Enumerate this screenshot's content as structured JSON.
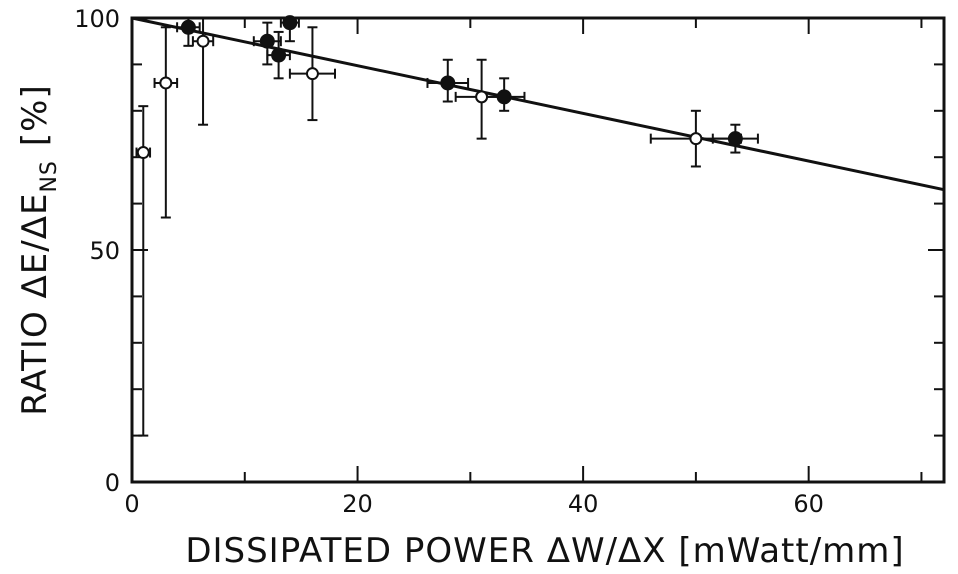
{
  "chart_data": {
    "type": "scatter",
    "title": "",
    "xlabel": "DISSIPATED POWER ΔW/ΔX [mWatt/mm]",
    "ylabel": "RATIO ΔE/ΔE_NS [%]",
    "ylabel_main": "RATIO ΔE/ΔE",
    "ylabel_sub": "NS",
    "ylabel_unit": "[%]",
    "xlim": [
      0,
      72
    ],
    "ylim": [
      0,
      100
    ],
    "x_ticks": [
      0,
      20,
      40,
      60
    ],
    "x_tick_labels": [
      "0",
      "20",
      "40",
      "60"
    ],
    "y_ticks": [
      0,
      50,
      100
    ],
    "y_tick_labels": [
      "0",
      "50",
      "100"
    ],
    "grid": false,
    "legend": "none",
    "fit_line": {
      "x": [
        0,
        72
      ],
      "y": [
        100,
        63
      ]
    },
    "series": [
      {
        "marker": "open-circle",
        "points": [
          {
            "x": 1.0,
            "y": 71,
            "yerr": [
              61,
              10
            ],
            "xerr": [
              0.6,
              0.6
            ]
          },
          {
            "x": 3.0,
            "y": 86,
            "yerr": [
              29,
              12
            ],
            "xerr": [
              1.0,
              1.0
            ]
          },
          {
            "x": 6.3,
            "y": 95,
            "yerr": [
              18,
              5
            ],
            "xerr": [
              0.9,
              0.9
            ]
          },
          {
            "x": 16.0,
            "y": 88,
            "yerr": [
              10,
              10
            ],
            "xerr": [
              2.0,
              2.0
            ]
          },
          {
            "x": 31.0,
            "y": 83,
            "yerr": [
              9,
              8
            ],
            "xerr": [
              2.3,
              2.3
            ]
          },
          {
            "x": 50.0,
            "y": 74,
            "yerr": [
              6,
              6
            ],
            "xerr": [
              4.0,
              4.0
            ]
          }
        ]
      },
      {
        "marker": "filled-circle",
        "points": [
          {
            "x": 5.0,
            "y": 98,
            "yerr": [
              4,
              2
            ],
            "xerr": [
              1.0,
              1.0
            ]
          },
          {
            "x": 12.0,
            "y": 95,
            "yerr": [
              5,
              4
            ],
            "xerr": [
              1.2,
              1.2
            ]
          },
          {
            "x": 13.0,
            "y": 92,
            "yerr": [
              5,
              5
            ],
            "xerr": [
              1.0,
              1.0
            ]
          },
          {
            "x": 14.0,
            "y": 99,
            "yerr": [
              4,
              1
            ],
            "xerr": [
              0.8,
              0.8
            ]
          },
          {
            "x": 28.0,
            "y": 86,
            "yerr": [
              4,
              5
            ],
            "xerr": [
              1.8,
              1.8
            ]
          },
          {
            "x": 33.0,
            "y": 83,
            "yerr": [
              3,
              4
            ],
            "xerr": [
              1.8,
              1.8
            ]
          },
          {
            "x": 53.5,
            "y": 74,
            "yerr": [
              3,
              3
            ],
            "xerr": [
              2.0,
              2.0
            ]
          }
        ]
      }
    ]
  }
}
